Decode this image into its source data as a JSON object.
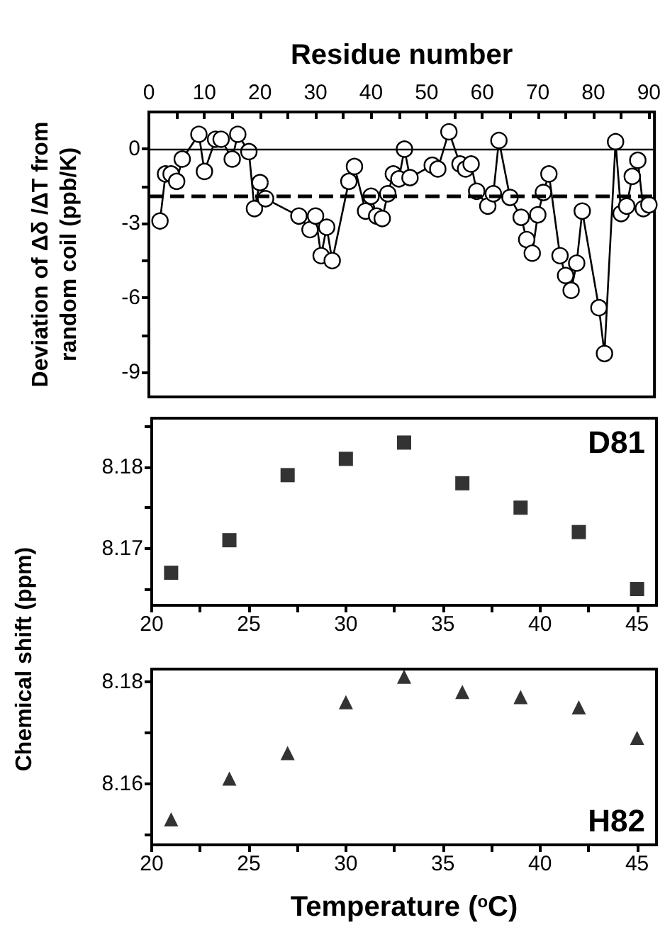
{
  "chart_data": [
    {
      "type": "line",
      "xlabel": "Residue number",
      "ylabel": "Deviation of Δδ /ΔT from\nrandom coil (ppb/K)",
      "xlim": [
        0,
        91
      ],
      "xticks": [
        0,
        {
          "value": 5,
          "label": null
        },
        10,
        {
          "value": 15,
          "label": null
        },
        20,
        {
          "value": 25,
          "label": null
        },
        30,
        {
          "value": 35,
          "label": null
        },
        40,
        {
          "value": 45,
          "label": null
        },
        50,
        {
          "value": 55,
          "label": null
        },
        60,
        {
          "value": 65,
          "label": null
        },
        70,
        {
          "value": 75,
          "label": null
        },
        80,
        {
          "value": 85,
          "label": null
        },
        90
      ],
      "ylim": [
        -10,
        1.5
      ],
      "yticks": [
        -9,
        {
          "value": -7.5,
          "label": null
        },
        -6,
        {
          "value": -4.5,
          "label": null
        },
        -3,
        {
          "value": -1.5,
          "label": null
        },
        0
      ],
      "marker": "circle",
      "line_style": "solid",
      "color": "#000000",
      "x": [
        2,
        3,
        4,
        5,
        6,
        9,
        10,
        12,
        13,
        15,
        16,
        18,
        19,
        20,
        21,
        27,
        29,
        30,
        31,
        32,
        33,
        36,
        37,
        39,
        40,
        41,
        42,
        43,
        44,
        45,
        46,
        47,
        51,
        52,
        54,
        56,
        57,
        58,
        59,
        61,
        62,
        63,
        65,
        67,
        68,
        69,
        70,
        71,
        72,
        74,
        75,
        76,
        77,
        78,
        81,
        82,
        84,
        85,
        86,
        87,
        88,
        89,
        90
      ],
      "values": [
        -2.9,
        -1.0,
        -1.0,
        -1.3,
        -0.4,
        0.6,
        -0.9,
        0.4,
        0.4,
        -0.4,
        0.6,
        -0.1,
        -2.4,
        -1.35,
        -2.0,
        -2.7,
        -3.25,
        -2.7,
        -4.3,
        -3.15,
        -4.5,
        -1.3,
        -0.7,
        -2.5,
        -1.9,
        -2.7,
        -2.8,
        -1.8,
        -1.0,
        -1.2,
        0,
        -1.15,
        -0.65,
        -0.8,
        0.7,
        -0.6,
        -0.8,
        -0.6,
        -1.7,
        -2.3,
        -1.8,
        0.35,
        -1.95,
        -2.75,
        -3.65,
        -4.2,
        -2.65,
        -1.75,
        -1.0,
        -4.3,
        -5.1,
        -5.7,
        -4.6,
        -2.5,
        -6.4,
        -8.25,
        0.3,
        -2.6,
        -2.3,
        -1.1,
        -0.45,
        -2.4,
        -2.25
      ],
      "ref_lines": [
        {
          "axis": "y",
          "value": 0,
          "line_style": "solid",
          "color": "#000000"
        },
        {
          "axis": "y",
          "value": -1.9,
          "line_style": "dashed",
          "color": "#000000"
        }
      ]
    },
    {
      "type": "scatter",
      "ylabel": "Chemical shift (ppm)",
      "annotations": [
        "D81"
      ],
      "xlim": [
        20,
        46
      ],
      "xticks": [
        20,
        {
          "value": 22.5,
          "label": null
        },
        25,
        {
          "value": 27.5,
          "label": null
        },
        30,
        {
          "value": 32.5,
          "label": null
        },
        35,
        {
          "value": 37.5,
          "label": null
        },
        40,
        {
          "value": 42.5,
          "label": null
        },
        45
      ],
      "ylim": [
        8.163,
        8.186
      ],
      "yticks": [
        {
          "value": 8.165,
          "label": null
        },
        8.17,
        {
          "value": 8.175,
          "label": null
        },
        8.18,
        {
          "value": 8.185,
          "label": null
        }
      ],
      "marker": "square",
      "color": "#000000",
      "x": [
        21,
        24,
        27,
        30,
        33,
        36,
        39,
        42,
        45
      ],
      "values": [
        8.167,
        8.171,
        8.179,
        8.181,
        8.183,
        8.178,
        8.175,
        8.172,
        8.165
      ]
    },
    {
      "type": "scatter",
      "xlabel": "Temperature ($^{o}$C)",
      "annotations": [
        "H82"
      ],
      "xlim": [
        20,
        46
      ],
      "xticks": [
        20,
        {
          "value": 22.5,
          "label": null
        },
        25,
        {
          "value": 27.5,
          "label": null
        },
        30,
        {
          "value": 32.5,
          "label": null
        },
        35,
        {
          "value": 37.5,
          "label": null
        },
        40,
        {
          "value": 42.5,
          "label": null
        },
        45
      ],
      "ylim": [
        8.148,
        8.1825
      ],
      "yticks": [
        {
          "value": 8.15,
          "label": null
        },
        8.16,
        {
          "value": 8.17,
          "label": null
        },
        8.18
      ],
      "marker": "triangle",
      "color": "#000000",
      "x": [
        21,
        24,
        27,
        30,
        33,
        36,
        39,
        42,
        45
      ],
      "values": [
        8.153,
        8.161,
        8.166,
        8.176,
        8.181,
        8.178,
        8.177,
        8.175,
        8.169
      ]
    }
  ]
}
